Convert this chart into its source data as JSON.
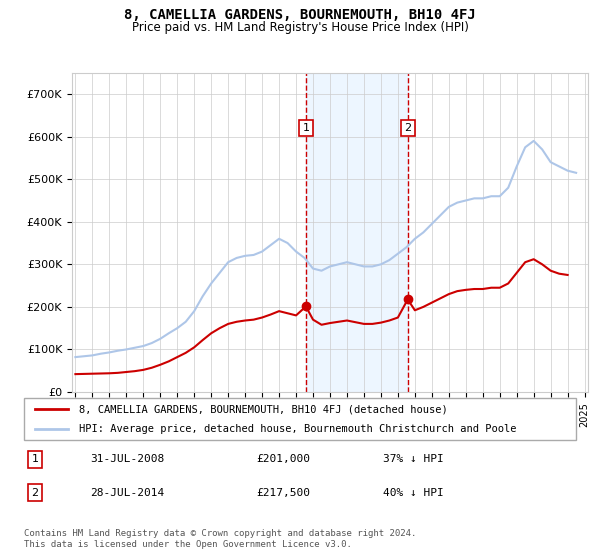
{
  "title": "8, CAMELLIA GARDENS, BOURNEMOUTH, BH10 4FJ",
  "subtitle": "Price paid vs. HM Land Registry's House Price Index (HPI)",
  "ylim": [
    0,
    750000
  ],
  "yticks": [
    0,
    100000,
    200000,
    300000,
    400000,
    500000,
    600000,
    700000
  ],
  "ytick_labels": [
    "£0",
    "£100K",
    "£200K",
    "£300K",
    "£400K",
    "£500K",
    "£600K",
    "£700K"
  ],
  "hpi_color": "#aec6e8",
  "price_color": "#cc0000",
  "sale1_date": 2008.58,
  "sale1_price": 201000,
  "sale2_date": 2014.58,
  "sale2_price": 217500,
  "vline_color": "#cc0000",
  "shade_color": "#ddeeff",
  "legend_entry1": "8, CAMELLIA GARDENS, BOURNEMOUTH, BH10 4FJ (detached house)",
  "legend_entry2": "HPI: Average price, detached house, Bournemouth Christchurch and Poole",
  "table_row1_num": "1",
  "table_row1_date": "31-JUL-2008",
  "table_row1_price": "£201,000",
  "table_row1_hpi": "37% ↓ HPI",
  "table_row2_num": "2",
  "table_row2_date": "28-JUL-2014",
  "table_row2_price": "£217,500",
  "table_row2_hpi": "40% ↓ HPI",
  "footer": "Contains HM Land Registry data © Crown copyright and database right 2024.\nThis data is licensed under the Open Government Licence v3.0.",
  "hpi_x": [
    1995.0,
    1995.5,
    1996.0,
    1996.5,
    1997.0,
    1997.5,
    1998.0,
    1998.5,
    1999.0,
    1999.5,
    2000.0,
    2000.5,
    2001.0,
    2001.5,
    2002.0,
    2002.5,
    2003.0,
    2003.5,
    2004.0,
    2004.5,
    2005.0,
    2005.5,
    2006.0,
    2006.5,
    2007.0,
    2007.5,
    2008.0,
    2008.5,
    2009.0,
    2009.5,
    2010.0,
    2010.5,
    2011.0,
    2011.5,
    2012.0,
    2012.5,
    2013.0,
    2013.5,
    2014.0,
    2014.5,
    2015.0,
    2015.5,
    2016.0,
    2016.5,
    2017.0,
    2017.5,
    2018.0,
    2018.5,
    2019.0,
    2019.5,
    2020.0,
    2020.5,
    2021.0,
    2021.5,
    2022.0,
    2022.5,
    2023.0,
    2023.5,
    2024.0,
    2024.5
  ],
  "hpi_y": [
    82000,
    84000,
    86000,
    90000,
    93000,
    97000,
    100000,
    104000,
    108000,
    115000,
    125000,
    138000,
    150000,
    165000,
    190000,
    225000,
    255000,
    280000,
    305000,
    315000,
    320000,
    322000,
    330000,
    345000,
    360000,
    350000,
    330000,
    315000,
    290000,
    285000,
    295000,
    300000,
    305000,
    300000,
    295000,
    295000,
    300000,
    310000,
    325000,
    340000,
    360000,
    375000,
    395000,
    415000,
    435000,
    445000,
    450000,
    455000,
    455000,
    460000,
    460000,
    480000,
    530000,
    575000,
    590000,
    570000,
    540000,
    530000,
    520000,
    515000
  ],
  "price_x": [
    1995.0,
    1995.5,
    1996.0,
    1996.5,
    1997.0,
    1997.5,
    1998.0,
    1998.5,
    1999.0,
    1999.5,
    2000.0,
    2000.5,
    2001.0,
    2001.5,
    2002.0,
    2002.5,
    2003.0,
    2003.5,
    2004.0,
    2004.5,
    2005.0,
    2005.5,
    2006.0,
    2006.5,
    2007.0,
    2007.5,
    2008.0,
    2008.58,
    2009.0,
    2009.5,
    2010.0,
    2010.5,
    2011.0,
    2011.5,
    2012.0,
    2012.5,
    2013.0,
    2013.5,
    2014.0,
    2014.58,
    2015.0,
    2015.5,
    2016.0,
    2016.5,
    2017.0,
    2017.5,
    2018.0,
    2018.5,
    2019.0,
    2019.5,
    2020.0,
    2020.5,
    2021.0,
    2021.5,
    2022.0,
    2022.5,
    2023.0,
    2023.5,
    2024.0
  ],
  "price_y": [
    42000,
    42500,
    43000,
    43500,
    44000,
    45000,
    47000,
    49000,
    52000,
    57000,
    64000,
    72000,
    82000,
    92000,
    105000,
    122000,
    138000,
    150000,
    160000,
    165000,
    168000,
    170000,
    175000,
    182000,
    190000,
    185000,
    180000,
    201000,
    170000,
    158000,
    162000,
    165000,
    168000,
    164000,
    160000,
    160000,
    163000,
    168000,
    175000,
    217500,
    192000,
    200000,
    210000,
    220000,
    230000,
    237000,
    240000,
    242000,
    242000,
    245000,
    245000,
    255000,
    280000,
    305000,
    312000,
    300000,
    285000,
    278000,
    275000
  ]
}
